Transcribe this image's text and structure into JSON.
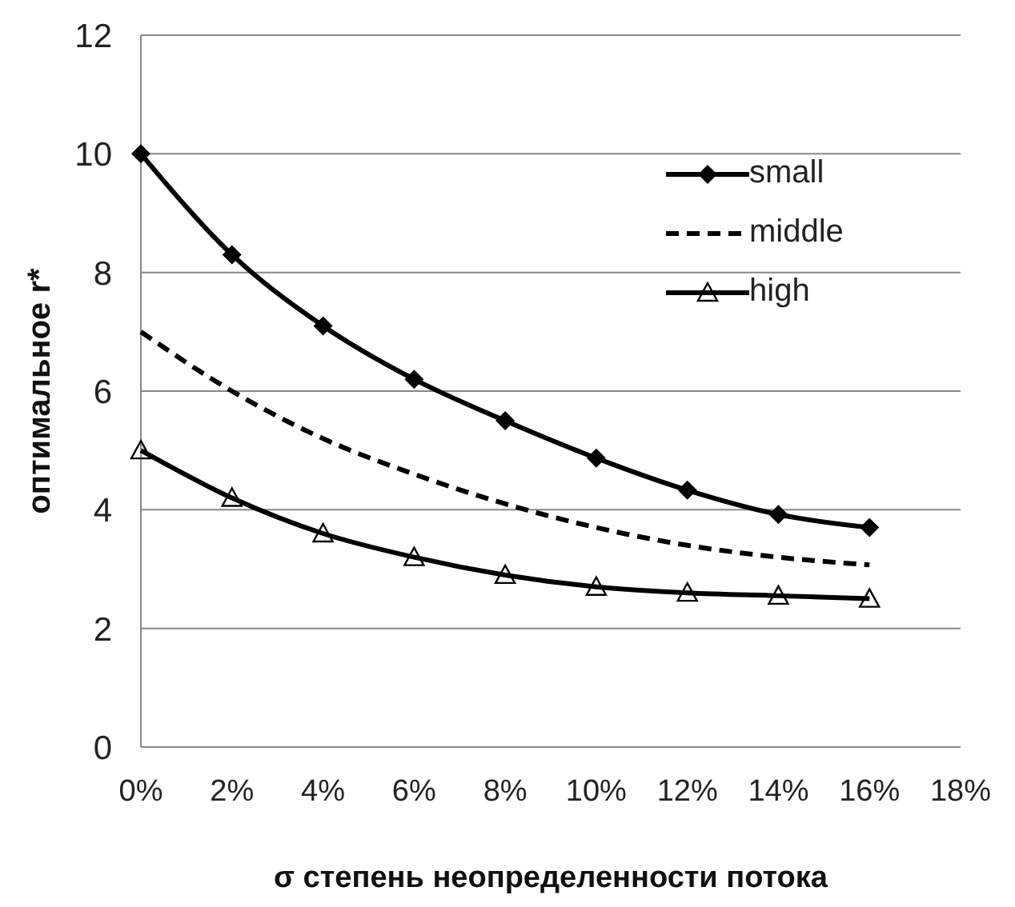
{
  "chart_data": {
    "type": "line",
    "xlabel": "σ степень неопределенности потока",
    "ylabel": "оптимальное r*",
    "x": [
      0,
      2,
      4,
      6,
      8,
      10,
      12,
      14,
      16
    ],
    "series": [
      {
        "name": "small",
        "color": "#000000",
        "marker": "diamond",
        "line_style": "solid",
        "values": [
          10,
          8.3,
          7.1,
          6.2,
          5.5,
          4.87,
          4.33,
          3.92,
          3.7
        ]
      },
      {
        "name": "middle",
        "color": "#000000",
        "marker": "none",
        "line_style": "dashed",
        "values": [
          7.0,
          6.0,
          5.2,
          4.6,
          4.1,
          3.7,
          3.4,
          3.2,
          3.07
        ]
      },
      {
        "name": "high",
        "color": "#000000",
        "marker": "triangle",
        "line_style": "solid",
        "values": [
          5.0,
          4.2,
          3.6,
          3.2,
          2.9,
          2.7,
          2.6,
          2.55,
          2.5
        ]
      }
    ],
    "xlim": [
      0,
      18
    ],
    "xticks": [
      {
        "value": 0,
        "label": "0%"
      },
      {
        "value": 2,
        "label": "2%"
      },
      {
        "value": 4,
        "label": "4%"
      },
      {
        "value": 6,
        "label": "6%"
      },
      {
        "value": 8,
        "label": "8%"
      },
      {
        "value": 10,
        "label": "10%"
      },
      {
        "value": 12,
        "label": "12%"
      },
      {
        "value": 14,
        "label": "14%"
      },
      {
        "value": 16,
        "label": "16%"
      },
      {
        "value": 18,
        "label": "18%"
      }
    ],
    "ylim": [
      0,
      12
    ],
    "yticks": [
      0,
      2,
      4,
      6,
      8,
      10,
      12
    ],
    "grid": "y",
    "legend": "top right"
  }
}
